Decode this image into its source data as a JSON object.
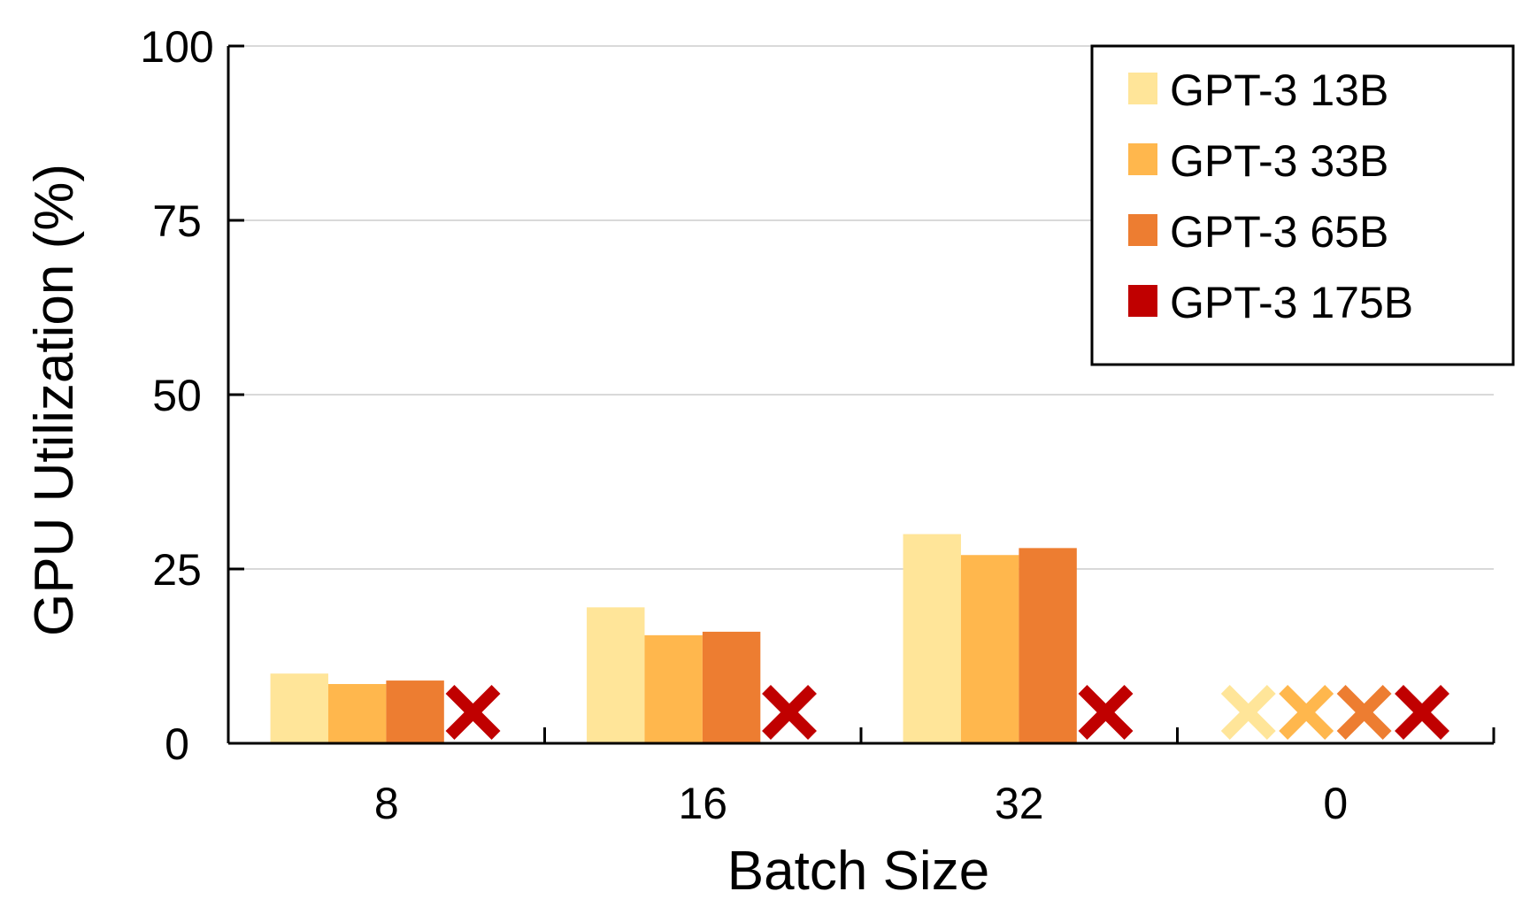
{
  "chart_data": {
    "type": "bar",
    "xlabel": "Batch Size",
    "ylabel": "GPU Utilization (%)",
    "categories": [
      "8",
      "16",
      "32",
      "0"
    ],
    "ylim": [
      0,
      100
    ],
    "yticks": [
      0,
      25,
      50,
      75,
      100
    ],
    "grid": true,
    "legend_position": "top-right",
    "series": [
      {
        "name": "GPT-3 13B",
        "color": "#FFE599",
        "values": [
          10,
          19.5,
          30,
          null
        ]
      },
      {
        "name": "GPT-3 33B",
        "color": "#FFB74D",
        "values": [
          8.5,
          15.5,
          27,
          null
        ]
      },
      {
        "name": "GPT-3 65B",
        "color": "#ED7D31",
        "values": [
          9,
          16,
          28,
          null
        ]
      },
      {
        "name": "GPT-3 175B",
        "color": "#C00000",
        "values": [
          null,
          null,
          null,
          null
        ]
      }
    ]
  }
}
